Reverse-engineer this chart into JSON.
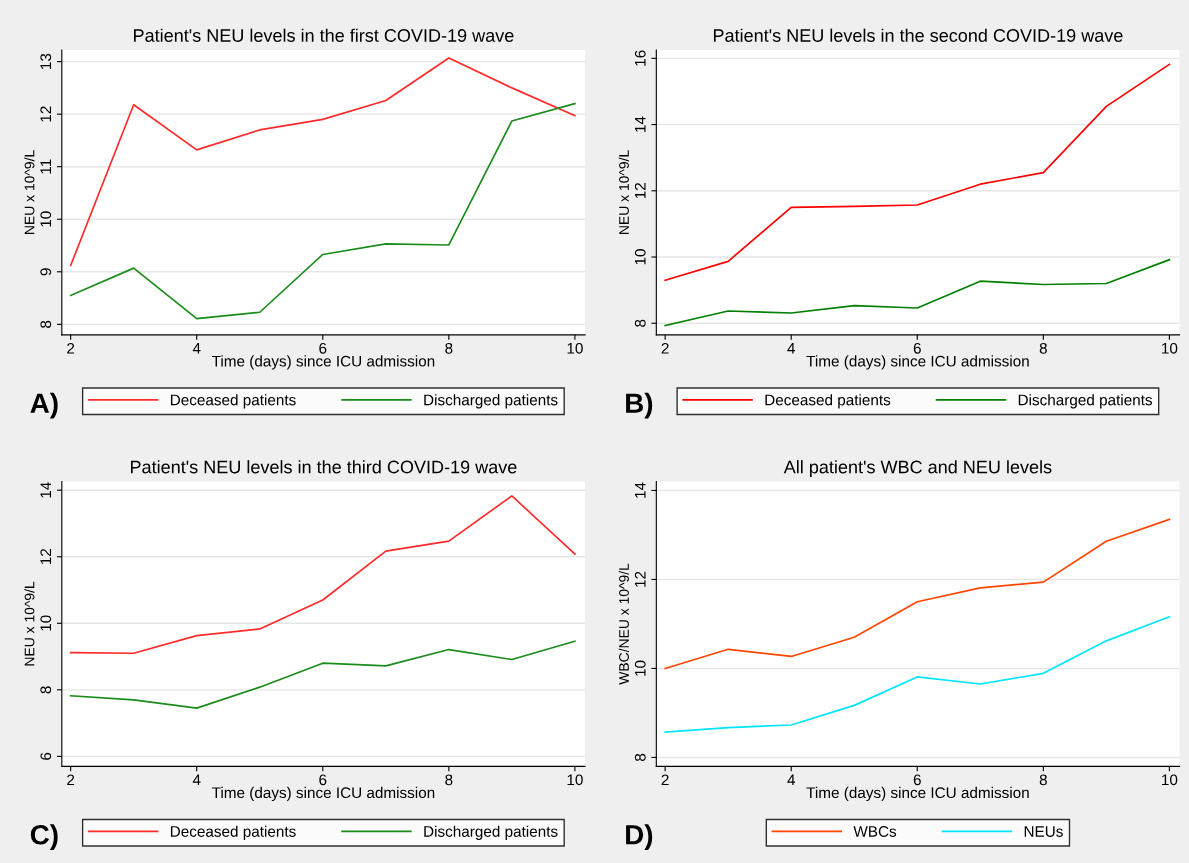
{
  "chart_data": [
    {
      "type": "line",
      "title": "Patient's NEU levels in the first COVID-19 wave",
      "xlabel": "Time (days) since ICU admission",
      "ylabel": "NEU x 10^9/L",
      "annotations": [
        "A)"
      ],
      "x": [
        2,
        3,
        4,
        5,
        6,
        7,
        8,
        9,
        10
      ],
      "xlim": [
        1.86,
        10.16
      ],
      "xticks": [
        2,
        4,
        6,
        8,
        10
      ],
      "ylim": [
        7.8,
        13.22
      ],
      "yticks": [
        8,
        9,
        10,
        11,
        12,
        13
      ],
      "grid": "y",
      "legend": "bottom",
      "series": [
        {
          "name": "Deceased patients",
          "color": "#ff2a2a",
          "values": [
            9.12,
            12.18,
            11.32,
            11.7,
            11.9,
            12.26,
            13.07,
            12.5,
            11.97
          ]
        },
        {
          "name": "Discharged patients",
          "color": "#1a8c1a",
          "values": [
            8.55,
            9.07,
            8.11,
            8.23,
            9.33,
            9.53,
            9.51,
            11.87,
            12.2
          ]
        }
      ]
    },
    {
      "type": "line",
      "title": "Patient's NEU levels in the second COVID-19 wave",
      "xlabel": "Time (days) since ICU admission",
      "ylabel": "NEU x 10^9/L",
      "annotations": [
        "B)"
      ],
      "x": [
        2,
        3,
        4,
        5,
        6,
        7,
        8,
        9,
        10
      ],
      "xlim": [
        1.86,
        10.16
      ],
      "xticks": [
        2,
        4,
        6,
        8,
        10
      ],
      "ylim": [
        7.65,
        16.25
      ],
      "yticks": [
        8,
        10,
        12,
        14,
        16
      ],
      "grid": "y",
      "legend": "bottom",
      "series": [
        {
          "name": "Deceased patients",
          "color": "#ff0000",
          "values": [
            9.3,
            9.87,
            11.5,
            11.53,
            11.57,
            12.2,
            12.55,
            14.55,
            15.82
          ]
        },
        {
          "name": "Discharged patients",
          "color": "#008000",
          "values": [
            7.93,
            8.37,
            8.31,
            8.53,
            8.46,
            9.27,
            9.17,
            9.2,
            9.92
          ]
        }
      ]
    },
    {
      "type": "line",
      "title": "Patient's NEU levels in the third COVID-19 wave",
      "xlabel": "Time (days) since ICU admission",
      "ylabel": "NEU x 10^9/L",
      "annotations": [
        "C)"
      ],
      "x": [
        2,
        3,
        4,
        5,
        6,
        7,
        8,
        9,
        10
      ],
      "xlim": [
        1.86,
        10.16
      ],
      "xticks": [
        2,
        4,
        6,
        8,
        10
      ],
      "ylim": [
        5.7,
        14.26
      ],
      "yticks": [
        6,
        8,
        10,
        12,
        14
      ],
      "grid": "y",
      "legend": "bottom",
      "series": [
        {
          "name": "Deceased patients",
          "color": "#ff2a2a",
          "values": [
            9.12,
            9.1,
            9.63,
            9.83,
            10.7,
            12.17,
            12.47,
            13.83,
            12.08
          ]
        },
        {
          "name": "Discharged patients",
          "color": "#1a8c1a",
          "values": [
            7.82,
            7.7,
            7.45,
            8.08,
            8.8,
            8.72,
            9.21,
            8.91,
            9.46
          ]
        }
      ]
    },
    {
      "type": "line",
      "title": "All patient's WBC and NEU levels",
      "xlabel": "Time (days) since ICU admission",
      "ylabel": "WBC/NEU x 10^9/L",
      "annotations": [
        "D)"
      ],
      "x": [
        2,
        3,
        4,
        5,
        6,
        7,
        8,
        9,
        10
      ],
      "xlim": [
        1.86,
        10.16
      ],
      "xticks": [
        2,
        4,
        6,
        8,
        10
      ],
      "ylim": [
        7.8,
        14.2
      ],
      "yticks": [
        8,
        10,
        12,
        14
      ],
      "grid": "y",
      "legend": "bottom",
      "series": [
        {
          "name": "WBCs",
          "color": "#ff4500",
          "values": [
            10.0,
            10.43,
            10.27,
            10.7,
            11.5,
            11.81,
            11.94,
            12.86,
            13.35
          ]
        },
        {
          "name": "NEUs",
          "color": "#00e5ff",
          "values": [
            8.57,
            8.67,
            8.73,
            9.17,
            9.81,
            9.65,
            9.89,
            10.62,
            11.16
          ]
        }
      ]
    }
  ]
}
